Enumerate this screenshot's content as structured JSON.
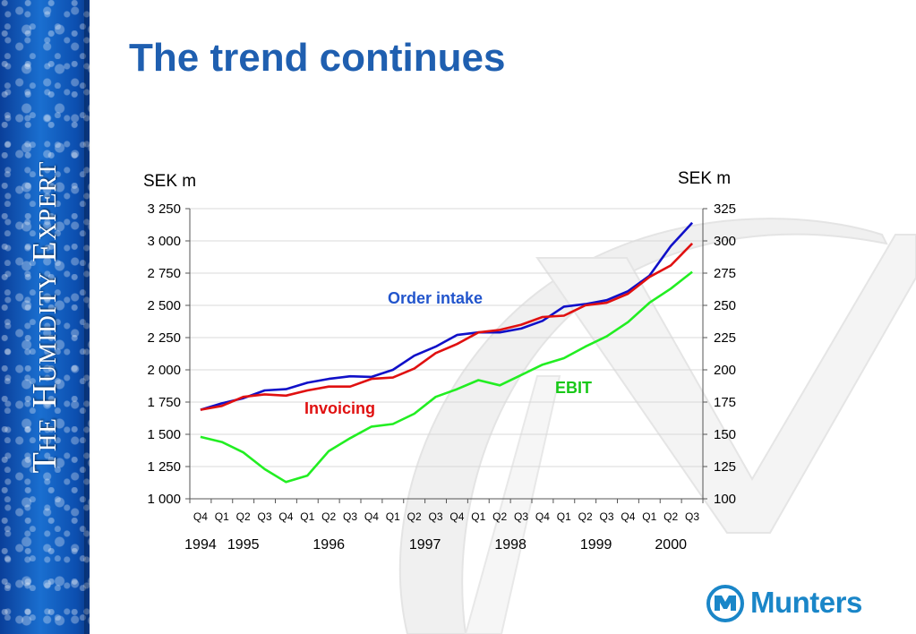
{
  "slide": {
    "title": "The trend continues",
    "tagline": "The Humidity Expert",
    "logo_text": "Munters"
  },
  "colors": {
    "title": "#1f5fb0",
    "order_intake": "#1010c8",
    "invoicing": "#e01010",
    "ebit": "#22ee22"
  },
  "chart_data": {
    "type": "line",
    "x": [
      "Q4",
      "Q1",
      "Q2",
      "Q3",
      "Q4",
      "Q1",
      "Q2",
      "Q3",
      "Q4",
      "Q1",
      "Q2",
      "Q3",
      "Q4",
      "Q1",
      "Q2",
      "Q3",
      "Q4",
      "Q1",
      "Q2",
      "Q3",
      "Q4",
      "Q1",
      "Q2",
      "Q3"
    ],
    "years": [
      {
        "label": "1994",
        "from": 0,
        "to": 0
      },
      {
        "label": "1995",
        "from": 1,
        "to": 3
      },
      {
        "label": "1996",
        "from": 4,
        "to": 8
      },
      {
        "label": "1997",
        "from": 9,
        "to": 12
      },
      {
        "label": "1998",
        "from": 13,
        "to": 16
      },
      {
        "label": "1999",
        "from": 17,
        "to": 20
      },
      {
        "label": "2000",
        "from": 21,
        "to": 23
      }
    ],
    "y_left": {
      "label": "SEK m",
      "lim": [
        1000,
        3250
      ],
      "ticks": [
        1000,
        1250,
        1500,
        1750,
        2000,
        2250,
        2500,
        2750,
        3000,
        3250
      ],
      "tick_labels": [
        "1 000",
        "1 250",
        "1 500",
        "1 750",
        "2 000",
        "2 250",
        "2 500",
        "2 750",
        "3 000",
        "3 250"
      ]
    },
    "y_right": {
      "label": "SEK m",
      "lim": [
        100,
        325
      ],
      "ticks": [
        100,
        125,
        150,
        175,
        200,
        225,
        250,
        275,
        300,
        325
      ],
      "tick_labels": [
        "100",
        "125",
        "150",
        "175",
        "200",
        "225",
        "250",
        "275",
        "300",
        "325"
      ]
    },
    "series": [
      {
        "name": "Order intake",
        "axis": "left",
        "color": "#1010c8",
        "values": [
          1690,
          1740,
          1780,
          1840,
          1850,
          1900,
          1930,
          1950,
          1945,
          2000,
          2110,
          2180,
          2270,
          2290,
          2290,
          2320,
          2380,
          2490,
          2510,
          2540,
          2610,
          2730,
          2960,
          3140
        ]
      },
      {
        "name": "Invoicing",
        "axis": "left",
        "color": "#e01010",
        "values": [
          1690,
          1720,
          1790,
          1810,
          1800,
          1840,
          1870,
          1870,
          1930,
          1940,
          2010,
          2130,
          2200,
          2290,
          2310,
          2350,
          2410,
          2420,
          2500,
          2520,
          2590,
          2720,
          2810,
          2980
        ]
      },
      {
        "name": "EBIT",
        "axis": "right",
        "color": "#22ee22",
        "values": [
          148,
          144,
          136,
          123,
          113,
          118,
          137,
          147,
          156,
          158,
          166,
          179,
          185,
          192,
          188,
          196,
          204,
          209,
          218,
          226,
          237,
          252,
          263,
          276
        ]
      }
    ],
    "annotations": [
      "Order intake",
      "Invoicing",
      "EBIT"
    ],
    "grid": true
  }
}
